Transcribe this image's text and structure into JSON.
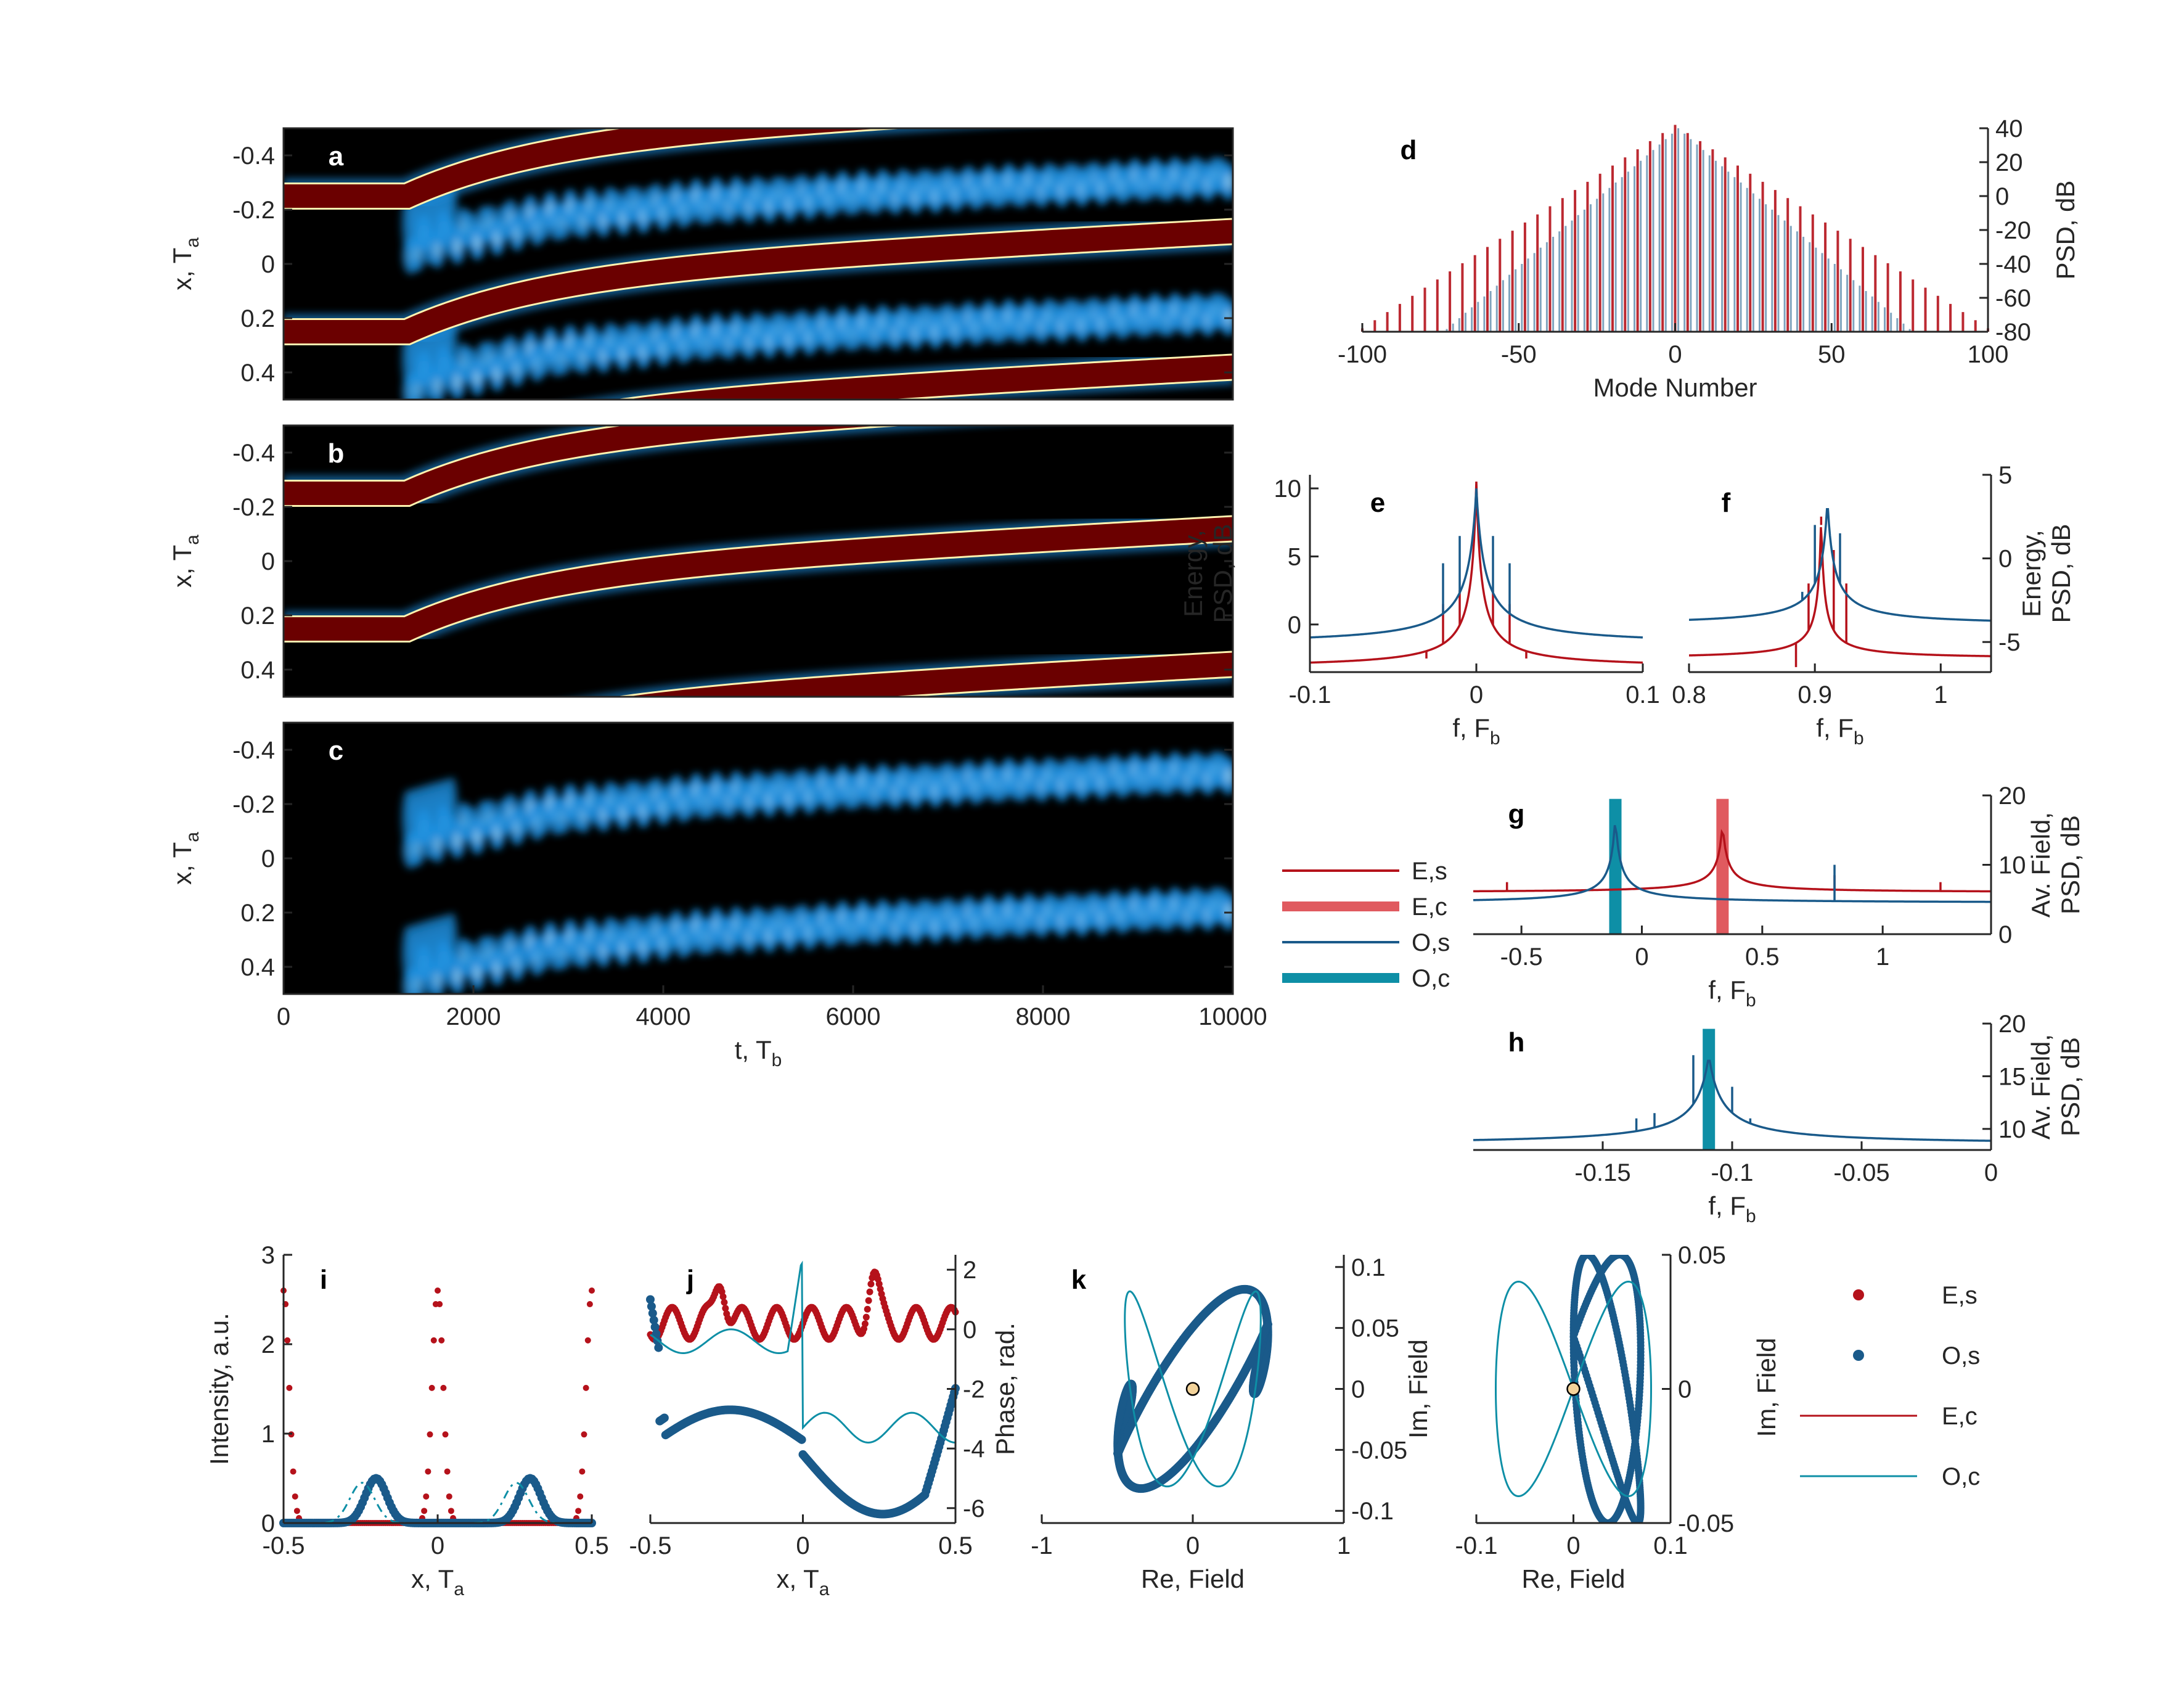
{
  "colors": {
    "red": "#b5121b",
    "red_thick": "#e05a5f",
    "blue": "#1a5a8a",
    "teal": "#0e8fa6",
    "hm_dark": "#000000",
    "hm_ridge": "#6b0000",
    "hm_glow": "#1b8fe0",
    "center_marker": "#f3d39a"
  },
  "chart_data": [
    {
      "id": "a",
      "type": "heatmap",
      "label": "a",
      "xlim": [
        0,
        10000
      ],
      "ylim": [
        -0.5,
        0.5
      ],
      "y_reversed": true,
      "ylabel": "x, T",
      "ylabel_sub": "a",
      "yticks": [
        -0.4,
        -0.2,
        0,
        0.2,
        0.4
      ],
      "ytick_labels": [
        "-0.4",
        "-0.2",
        "0",
        "0.2",
        "0.4"
      ],
      "transition_t": 1300,
      "ridges": [
        {
          "kind": "soliton",
          "x0": -0.25,
          "x_end": -0.62
        },
        {
          "kind": "soliton",
          "x0": 0.25,
          "x_end": -0.12
        },
        {
          "kind": "soliton",
          "x0": 0.75,
          "x_end": 0.38
        }
      ],
      "glow": [
        {
          "x0": -0.05,
          "x_end": -0.32
        },
        {
          "x0": 0.45,
          "x_end": 0.18
        }
      ]
    },
    {
      "id": "b",
      "type": "heatmap",
      "label": "b",
      "xlim": [
        0,
        10000
      ],
      "ylim": [
        -0.5,
        0.5
      ],
      "y_reversed": true,
      "ylabel": "x, T",
      "ylabel_sub": "a",
      "yticks": [
        -0.4,
        -0.2,
        0,
        0.2,
        0.4
      ],
      "ytick_labels": [
        "-0.4",
        "-0.2",
        "0",
        "0.2",
        "0.4"
      ],
      "transition_t": 1300,
      "ridges": [
        {
          "kind": "soliton",
          "x0": -0.25,
          "x_end": -0.62
        },
        {
          "kind": "soliton",
          "x0": 0.25,
          "x_end": -0.12
        },
        {
          "kind": "soliton",
          "x0": 0.75,
          "x_end": 0.38
        }
      ],
      "glow": []
    },
    {
      "id": "c",
      "type": "heatmap",
      "label": "c",
      "xlim": [
        0,
        10000
      ],
      "ylim": [
        -0.5,
        0.5
      ],
      "y_reversed": true,
      "ylabel": "x, T",
      "ylabel_sub": "a",
      "xlabel": "t, T",
      "xlabel_sub": "b",
      "yticks": [
        -0.4,
        -0.2,
        0,
        0.2,
        0.4
      ],
      "ytick_labels": [
        "-0.4",
        "-0.2",
        "0",
        "0.2",
        "0.4"
      ],
      "xticks": [
        0,
        2000,
        4000,
        6000,
        8000,
        10000
      ],
      "xtick_labels": [
        "0",
        "2000",
        "4000",
        "6000",
        "8000",
        "10000"
      ],
      "transition_t": 1300,
      "ridges": [],
      "glow": [
        {
          "x0": -0.05,
          "x_end": -0.32
        },
        {
          "x0": 0.45,
          "x_end": 0.18
        }
      ]
    },
    {
      "id": "d",
      "type": "bar",
      "label": "d",
      "xlim": [
        -100,
        100
      ],
      "ylim": [
        -80,
        40
      ],
      "xlabel": "Mode Number",
      "ylabel": "PSD, dB",
      "yaxis_side": "right",
      "xticks": [
        -100,
        -50,
        0,
        50,
        100
      ],
      "xtick_labels": [
        "-100",
        "-50",
        "0",
        "50",
        "100"
      ],
      "yticks": [
        -80,
        -60,
        -40,
        -20,
        0,
        20,
        40
      ],
      "ytick_labels": [
        "-80",
        "-60",
        "-40",
        "-20",
        "0",
        "20",
        "40"
      ],
      "series": [
        {
          "name": "E,s",
          "color": "red",
          "peak_db": 42,
          "slope_db_per_mode": 1.2,
          "floor": -80
        },
        {
          "name": "O,s",
          "color": "blue",
          "peak_db": 40,
          "slope_db_per_mode": 1.6,
          "floor": -80
        }
      ]
    },
    {
      "id": "e",
      "type": "line",
      "label": "e",
      "xlim": [
        -0.1,
        0.1
      ],
      "ylim": [
        -3.5,
        11
      ],
      "ylabel": "Energy,",
      "ylabel2": "PSD, dB",
      "xlabel": "f, F",
      "xlabel_sub": "b",
      "xticks": [
        -0.1,
        0,
        0.1
      ],
      "xtick_labels": [
        "-0.1",
        "0",
        "0.1"
      ],
      "yticks": [
        0,
        5,
        10
      ],
      "ytick_labels": [
        "0",
        "5",
        "10"
      ],
      "series": [
        {
          "name": "E,s",
          "color": "red",
          "center": 0,
          "base": -3.2,
          "peak": 10.5,
          "width": 0.012,
          "spikes": [
            [
              -0.03,
              -2.5
            ],
            [
              -0.02,
              1.5
            ],
            [
              -0.01,
              2.5
            ],
            [
              0.01,
              2.5
            ],
            [
              0.02,
              1.5
            ],
            [
              0.03,
              -2.5
            ]
          ]
        },
        {
          "name": "O,s",
          "color": "blue",
          "center": 0,
          "base": -1.5,
          "peak": 10,
          "width": 0.02,
          "spikes": [
            [
              -0.03,
              0.1
            ],
            [
              -0.02,
              4.5
            ],
            [
              -0.01,
              6.5
            ],
            [
              0.01,
              6.5
            ],
            [
              0.02,
              4.5
            ],
            [
              0.03,
              0.1
            ]
          ]
        }
      ]
    },
    {
      "id": "f",
      "type": "line",
      "label": "f",
      "xlim": [
        0.8,
        1.04
      ],
      "ylim": [
        -6.8,
        5
      ],
      "ylabel": "Energy,",
      "ylabel2": "PSD, dB",
      "yaxis_side": "right",
      "xlabel": "f, F",
      "xlabel_sub": "b",
      "xticks": [
        0.8,
        0.9,
        1
      ],
      "xtick_labels": [
        "0.8",
        "0.9",
        "1"
      ],
      "yticks": [
        -5,
        0,
        5
      ],
      "ytick_labels": [
        "-5",
        "0",
        "5"
      ],
      "series": [
        {
          "name": "E,s",
          "color": "red",
          "center": 0.905,
          "base": -6,
          "peak": 2.5,
          "width": 0.01,
          "spikes": [
            [
              0.885,
              -6.5
            ],
            [
              0.895,
              -1.5
            ],
            [
              0.905,
              2
            ],
            [
              0.915,
              0.5
            ],
            [
              0.925,
              -1.5
            ]
          ]
        },
        {
          "name": "O,s",
          "color": "blue",
          "center": 0.91,
          "base": -4,
          "peak": 3.5,
          "width": 0.02,
          "spikes": [
            [
              0.89,
              -2
            ],
            [
              0.9,
              2
            ],
            [
              0.91,
              3.5
            ],
            [
              0.92,
              1.5
            ],
            [
              0.93,
              -2.5
            ]
          ]
        }
      ]
    },
    {
      "id": "g",
      "type": "line",
      "label": "g",
      "xlim": [
        -0.7,
        1.45
      ],
      "ylim": [
        0,
        20
      ],
      "ylabel": "Av. Field,",
      "ylabel2": "PSD, dB",
      "yaxis_side": "right",
      "xlabel": "f, F",
      "xlabel_sub": "b",
      "xticks": [
        -0.5,
        0,
        0.5,
        1
      ],
      "xtick_labels": [
        "-0.5",
        "0",
        "0.5",
        "1"
      ],
      "yticks": [
        0,
        10,
        20
      ],
      "ytick_labels": [
        "0",
        "10",
        "20"
      ],
      "bars": [
        {
          "name": "O,c",
          "color": "teal",
          "x": -0.11,
          "height": 19.5
        },
        {
          "name": "E,c",
          "color": "red_thick",
          "x": 0.335,
          "height": 19.5
        }
      ],
      "series": [
        {
          "name": "E,s",
          "color": "red",
          "center": 0.335,
          "base": 6,
          "peak": 16,
          "width": 0.08,
          "spikes": [
            [
              -0.56,
              7.5
            ],
            [
              0.8,
              8.5
            ],
            [
              1.24,
              7.5
            ]
          ]
        },
        {
          "name": "O,s",
          "color": "blue",
          "center": -0.11,
          "base": 4.5,
          "peak": 17,
          "width": 0.08,
          "spikes": [
            [
              0.8,
              10
            ]
          ]
        }
      ]
    },
    {
      "id": "h",
      "type": "line",
      "label": "h",
      "xlim": [
        -0.2,
        0
      ],
      "ylim": [
        8,
        20
      ],
      "ylabel": "Av. Field,",
      "ylabel2": "PSD, dB",
      "yaxis_side": "right",
      "xlabel": "f, F",
      "xlabel_sub": "b",
      "xticks": [
        -0.15,
        -0.1,
        -0.05,
        0
      ],
      "xtick_labels": [
        "-0.15",
        "-0.1",
        "-0.05",
        "0"
      ],
      "yticks": [
        10,
        15,
        20
      ],
      "ytick_labels": [
        "10",
        "15",
        "20"
      ],
      "bars": [
        {
          "name": "O,c",
          "color": "teal",
          "x": -0.109,
          "height": 19.5
        }
      ],
      "series": [
        {
          "name": "O,s",
          "color": "blue",
          "center": -0.109,
          "base": 8.5,
          "peak": 17,
          "width": 0.02,
          "spikes": [
            [
              -0.137,
              11
            ],
            [
              -0.13,
              11.5
            ],
            [
              -0.115,
              17
            ],
            [
              -0.1,
              14
            ],
            [
              -0.093,
              11
            ]
          ]
        }
      ]
    },
    {
      "id": "i",
      "type": "line",
      "label": "i",
      "xlim": [
        -0.5,
        0.5
      ],
      "ylim": [
        0,
        3
      ],
      "ylabel": "Intensity, a.u.",
      "xlabel": "x, T",
      "xlabel_sub": "a",
      "xticks": [
        -0.5,
        0,
        0.5
      ],
      "xtick_labels": [
        "-0.5",
        "0",
        "0.5"
      ],
      "yticks": [
        0,
        1,
        2,
        3
      ],
      "ytick_labels": [
        "0",
        "1",
        "2",
        "3"
      ],
      "series": [
        {
          "name": "E,s",
          "color": "red",
          "peaks": [
            -0.5,
            0,
            0.5
          ],
          "amp": 2.6,
          "width": 0.018
        },
        {
          "name": "O,s",
          "color": "blue",
          "peaks": [
            -0.2,
            0.3
          ],
          "amp": 0.5,
          "width": 0.035
        },
        {
          "name": "O,c",
          "color": "teal",
          "peaks": [
            -0.245,
            0.255
          ],
          "amp": 0.45,
          "width": 0.04
        }
      ]
    },
    {
      "id": "j",
      "type": "line",
      "label": "j",
      "xlim": [
        -0.5,
        0.5
      ],
      "ylim": [
        -6.5,
        2.5
      ],
      "ylabel": "Phase, rad.",
      "yaxis_side": "right",
      "xlabel": "x, T",
      "xlabel_sub": "a",
      "xticks": [
        -0.5,
        0,
        0.5
      ],
      "xtick_labels": [
        "-0.5",
        "0",
        "0.5"
      ],
      "yticks": [
        -6,
        -4,
        -2,
        0,
        2
      ],
      "ytick_labels": [
        "-6",
        "-4",
        "-2",
        "0",
        "2"
      ],
      "series": [
        {
          "name": "E,s",
          "color": "red"
        },
        {
          "name": "O,s",
          "color": "blue"
        },
        {
          "name": "O,c",
          "color": "teal"
        }
      ]
    },
    {
      "id": "k1",
      "type": "scatter",
      "label": "k",
      "xlim": [
        -1,
        1
      ],
      "ylim": [
        -0.11,
        0.11
      ],
      "xlabel": "Re, Field",
      "yaxis_side": "right",
      "xticks": [
        -1,
        0,
        1
      ],
      "xtick_labels": [
        "-1",
        "0",
        "1"
      ],
      "yticks": [
        -0.1,
        -0.05,
        0,
        0.05,
        0.1
      ],
      "ytick_labels": [
        "-0.1",
        "-0.05",
        "0",
        "0.05",
        "0.1"
      ]
    },
    {
      "id": "k2",
      "type": "scatter",
      "label": "",
      "xlim": [
        -0.1,
        0.1
      ],
      "ylim": [
        -0.05,
        0.05
      ],
      "xlabel": "Re, Field",
      "ylabel": "Im, Field",
      "yaxis_side": "right",
      "xticks": [
        -0.1,
        0,
        0.1
      ],
      "xtick_labels": [
        "-0.1",
        "0",
        "0.1"
      ],
      "yticks": [
        -0.05,
        0,
        0.05
      ],
      "ytick_labels": [
        "-0.05",
        "0",
        "0.05"
      ]
    }
  ],
  "legend_top": {
    "entries": [
      {
        "label": "E,s",
        "color": "red",
        "style": "thin"
      },
      {
        "label": "E,c",
        "color": "red_thick",
        "style": "thick"
      },
      {
        "label": "O,s",
        "color": "blue",
        "style": "thin"
      },
      {
        "label": "O,c",
        "color": "teal",
        "style": "thick"
      }
    ]
  },
  "legend_bottom": {
    "axis_label": "Im, Field",
    "entries": [
      {
        "label": "E,s",
        "color": "red",
        "style": "dot"
      },
      {
        "label": "O,s",
        "color": "blue",
        "style": "dot"
      },
      {
        "label": "E,c",
        "color": "red",
        "style": "thin"
      },
      {
        "label": "O,c",
        "color": "teal",
        "style": "thin"
      }
    ]
  }
}
